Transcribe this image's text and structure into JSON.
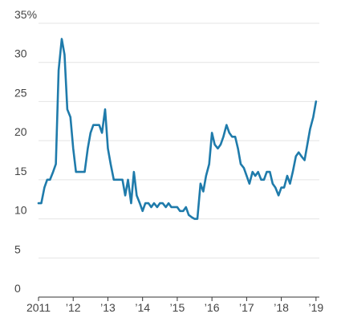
{
  "chart_data": {
    "type": "line",
    "title": "",
    "xlabel": "",
    "ylabel": "",
    "y_unit_suffix": "%",
    "xlim": [
      2011.0,
      2019.05
    ],
    "ylim": [
      0,
      35
    ],
    "y_ticks": [
      0,
      5,
      10,
      15,
      20,
      25,
      30,
      35
    ],
    "y_tick_labels": [
      "0",
      "5",
      "10",
      "15",
      "20",
      "25",
      "30",
      "35%"
    ],
    "x_ticks": [
      2011,
      2012,
      2013,
      2014,
      2015,
      2016,
      2017,
      2018,
      2019
    ],
    "x_tick_labels": [
      "2011",
      "’12",
      "’13",
      "’14",
      "’15",
      "’16",
      "’17",
      "’18",
      "’19"
    ],
    "grid": "horizontal",
    "line_color": "#1f7bab",
    "series": [
      {
        "x": [
          2011.0,
          2011.08,
          2011.17,
          2011.25,
          2011.33,
          2011.42,
          2011.5,
          2011.58,
          2011.67,
          2011.75,
          2011.83,
          2011.92,
          2012.0,
          2012.08,
          2012.17,
          2012.25,
          2012.33,
          2012.42,
          2012.5,
          2012.58,
          2012.67,
          2012.75,
          2012.83,
          2012.92,
          2013.0,
          2013.08,
          2013.17,
          2013.25,
          2013.33,
          2013.42,
          2013.5,
          2013.58,
          2013.67,
          2013.75,
          2013.83,
          2013.92,
          2014.0,
          2014.08,
          2014.17,
          2014.25,
          2014.33,
          2014.42,
          2014.5,
          2014.58,
          2014.67,
          2014.75,
          2014.83,
          2014.92,
          2015.0,
          2015.08,
          2015.17,
          2015.25,
          2015.33,
          2015.42,
          2015.5,
          2015.58,
          2015.67,
          2015.75,
          2015.83,
          2015.92,
          2016.0,
          2016.08,
          2016.17,
          2016.25,
          2016.33,
          2016.42,
          2016.5,
          2016.58,
          2016.67,
          2016.75,
          2016.83,
          2016.92,
          2017.0,
          2017.08,
          2017.17,
          2017.25,
          2017.33,
          2017.42,
          2017.5,
          2017.58,
          2017.67,
          2017.75,
          2017.83,
          2017.92,
          2018.0,
          2018.08,
          2018.17,
          2018.25,
          2018.33,
          2018.42,
          2018.5,
          2018.58,
          2018.67,
          2018.75,
          2018.83,
          2018.92,
          2019.0
        ],
        "values": [
          12.0,
          12.0,
          14.0,
          15.0,
          15.0,
          16.0,
          17.0,
          29.0,
          33.0,
          31.0,
          24.0,
          23.0,
          19.0,
          16.0,
          16.0,
          16.0,
          16.0,
          19.0,
          21.0,
          22.0,
          22.0,
          22.0,
          21.0,
          24.0,
          19.0,
          17.0,
          15.0,
          15.0,
          15.0,
          15.0,
          13.0,
          15.0,
          12.0,
          16.0,
          13.0,
          12.0,
          11.0,
          12.0,
          12.0,
          11.5,
          12.0,
          11.5,
          12.0,
          12.0,
          11.5,
          12.0,
          11.5,
          11.5,
          11.5,
          11.0,
          11.0,
          11.5,
          10.5,
          10.2,
          10.0,
          10.0,
          14.5,
          13.5,
          15.5,
          17.0,
          21.0,
          19.5,
          19.0,
          19.5,
          20.5,
          22.0,
          21.0,
          20.5,
          20.5,
          19.0,
          17.0,
          16.5,
          15.5,
          14.5,
          16.0,
          15.5,
          16.0,
          15.0,
          15.0,
          16.0,
          16.0,
          14.5,
          14.0,
          13.0,
          14.0,
          14.0,
          15.5,
          14.5,
          16.0,
          18.0,
          18.5,
          18.0,
          17.5,
          19.5,
          21.5,
          23.0,
          25.0
        ]
      }
    ]
  }
}
